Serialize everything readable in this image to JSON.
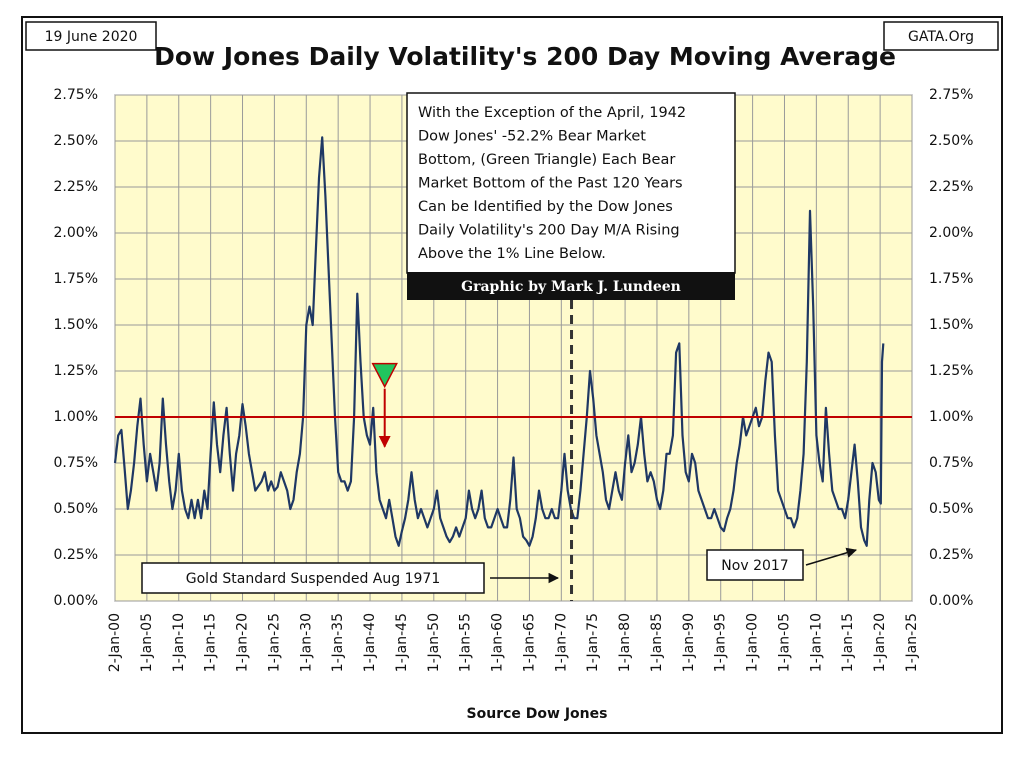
{
  "chart_data": {
    "type": "line",
    "title": "Dow Jones Daily Volatility's 200 Day Moving Average",
    "date": "19 June 2020",
    "source": "GATA.Org",
    "x_axis_label": "Source Dow Jones",
    "color": "#1f3864",
    "xlim": [
      1900,
      2025
    ],
    "ylim": [
      0,
      2.75
    ],
    "grid": true,
    "background": "#fffbcc",
    "xticks": [
      {
        "value": 1900,
        "label": "2-Jan-00"
      },
      {
        "value": 1905,
        "label": "1-Jan-05"
      },
      {
        "value": 1910,
        "label": "1-Jan-10"
      },
      {
        "value": 1915,
        "label": "1-Jan-15"
      },
      {
        "value": 1920,
        "label": "1-Jan-20"
      },
      {
        "value": 1925,
        "label": "1-Jan-25"
      },
      {
        "value": 1930,
        "label": "1-Jan-30"
      },
      {
        "value": 1935,
        "label": "1-Jan-35"
      },
      {
        "value": 1940,
        "label": "1-Jan-40"
      },
      {
        "value": 1945,
        "label": "1-Jan-45"
      },
      {
        "value": 1950,
        "label": "1-Jan-50"
      },
      {
        "value": 1955,
        "label": "1-Jan-55"
      },
      {
        "value": 1960,
        "label": "1-Jan-60"
      },
      {
        "value": 1965,
        "label": "1-Jan-65"
      },
      {
        "value": 1970,
        "label": "1-Jan-70"
      },
      {
        "value": 1975,
        "label": "1-Jan-75"
      },
      {
        "value": 1980,
        "label": "1-Jan-80"
      },
      {
        "value": 1985,
        "label": "1-Jan-85"
      },
      {
        "value": 1990,
        "label": "1-Jan-90"
      },
      {
        "value": 1995,
        "label": "1-Jan-95"
      },
      {
        "value": 2000,
        "label": "1-Jan-00"
      },
      {
        "value": 2005,
        "label": "1-Jan-05"
      },
      {
        "value": 2010,
        "label": "1-Jan-10"
      },
      {
        "value": 2015,
        "label": "1-Jan-15"
      },
      {
        "value": 2020,
        "label": "1-Jan-20"
      },
      {
        "value": 2025,
        "label": "1-Jan-25"
      }
    ],
    "yticks": [
      {
        "value": 0,
        "label": "0.00%"
      },
      {
        "value": 0.25,
        "label": "0.25%"
      },
      {
        "value": 0.5,
        "label": "0.50%"
      },
      {
        "value": 0.75,
        "label": "0.75%"
      },
      {
        "value": 1,
        "label": "1.00%"
      },
      {
        "value": 1.25,
        "label": "1.25%"
      },
      {
        "value": 1.5,
        "label": "1.50%"
      },
      {
        "value": 1.75,
        "label": "1.75%"
      },
      {
        "value": 2,
        "label": "2.00%"
      },
      {
        "value": 2.25,
        "label": "2.25%"
      },
      {
        "value": 2.5,
        "label": "2.50%"
      },
      {
        "value": 2.75,
        "label": "2.75%"
      }
    ],
    "reference_line": {
      "value": 1,
      "color": "#c00000"
    },
    "vertical_line": {
      "value": 1971.6,
      "color": "#333333"
    },
    "highlight": {
      "x": 1942.3,
      "value": 1.23,
      "color": "#22c55e"
    },
    "note": [
      "With the Exception of the April, 1942",
      "Dow Jones' -52.2% Bear Market",
      "Bottom, (Green Triangle) Each Bear",
      "Market Bottom of the Past 120 Years",
      "Can be Identified by the Dow Jones",
      "Daily Volatility's 200 Day M/A Rising",
      "Above the 1% Line Below."
    ],
    "credit": "Graphic by Mark J. Lundeen",
    "gold_note": "Gold Standard Suspended Aug 1971",
    "nov_note": "Nov 2017",
    "x": [
      1900,
      1900.5,
      1901,
      1901.5,
      1902,
      1902.5,
      1903,
      1903.5,
      1904,
      1904.5,
      1905,
      1905.5,
      1906,
      1906.5,
      1907,
      1907.5,
      1908,
      1908.5,
      1909,
      1909.5,
      1910,
      1910.5,
      1911,
      1911.5,
      1912,
      1912.5,
      1913,
      1913.5,
      1914,
      1914.5,
      1915,
      1915.5,
      1916,
      1916.5,
      1917,
      1917.5,
      1918,
      1918.5,
      1919,
      1919.5,
      1920,
      1920.5,
      1921,
      1921.5,
      1922,
      1923,
      1923.5,
      1924,
      1924.5,
      1925,
      1925.5,
      1926,
      1926.5,
      1927,
      1927.5,
      1928,
      1928.5,
      1929,
      1929.5,
      1930,
      1930.5,
      1931,
      1931.5,
      1932,
      1932.5,
      1933,
      1933.5,
      1934,
      1934.5,
      1935,
      1935.5,
      1936,
      1936.5,
      1937,
      1937.5,
      1938,
      1938.5,
      1939,
      1939.5,
      1940,
      1940.5,
      1941,
      1941.5,
      1942,
      1942.5,
      1943,
      1943.5,
      1944,
      1944.5,
      1945,
      1945.5,
      1946,
      1946.5,
      1947,
      1947.5,
      1948,
      1948.5,
      1949,
      1949.5,
      1950,
      1950.5,
      1951,
      1951.5,
      1952,
      1952.5,
      1953,
      1953.5,
      1954,
      1954.5,
      1955,
      1955.5,
      1956,
      1956.5,
      1957,
      1957.5,
      1958,
      1958.5,
      1959,
      1959.5,
      1960,
      1960.5,
      1961,
      1961.5,
      1962,
      1962.5,
      1963,
      1963.5,
      1964,
      1964.5,
      1965,
      1965.5,
      1966,
      1966.5,
      1967,
      1967.5,
      1968,
      1968.5,
      1969,
      1969.5,
      1970,
      1970.5,
      1971,
      1971.5,
      1972,
      1972.5,
      1973,
      1973.5,
      1974,
      1974.5,
      1975,
      1975.5,
      1976,
      1976.5,
      1977,
      1977.5,
      1978,
      1978.5,
      1979,
      1979.5,
      1980,
      1980.5,
      1981,
      1981.5,
      1982,
      1982.5,
      1983,
      1983.5,
      1984,
      1984.5,
      1985,
      1985.5,
      1986,
      1986.5,
      1987,
      1987.5,
      1988,
      1988.5,
      1989,
      1989.5,
      1990,
      1990.5,
      1991,
      1991.5,
      1992,
      1992.5,
      1993,
      1993.5,
      1994,
      1994.5,
      1995,
      1995.5,
      1996,
      1996.5,
      1997,
      1997.5,
      1998,
      1998.5,
      1999,
      1999.5,
      2000,
      2000.5,
      2001,
      2001.5,
      2002,
      2002.5,
      2003,
      2003.5,
      2004,
      2004.5,
      2005,
      2005.5,
      2006,
      2006.5,
      2007,
      2007.5,
      2008,
      2008.5,
      2009,
      2009.5,
      2010,
      2010.5,
      2011,
      2011.5,
      2012,
      2012.5,
      2013,
      2013.5,
      2014,
      2014.5,
      2015,
      2015.5,
      2016,
      2016.5,
      2017,
      2017.5,
      2017.9,
      2018.3,
      2018.8,
      2019.3,
      2019.8,
      2020.1,
      2020.3,
      2020.5
    ],
    "values": [
      0.75,
      0.9,
      0.93,
      0.72,
      0.5,
      0.6,
      0.75,
      0.95,
      1.1,
      0.85,
      0.65,
      0.8,
      0.7,
      0.6,
      0.75,
      1.1,
      0.85,
      0.65,
      0.5,
      0.6,
      0.8,
      0.6,
      0.5,
      0.45,
      0.55,
      0.45,
      0.55,
      0.45,
      0.6,
      0.5,
      0.8,
      1.08,
      0.85,
      0.7,
      0.9,
      1.05,
      0.8,
      0.6,
      0.8,
      0.9,
      1.07,
      0.95,
      0.8,
      0.7,
      0.6,
      0.65,
      0.7,
      0.6,
      0.65,
      0.6,
      0.62,
      0.7,
      0.65,
      0.6,
      0.5,
      0.55,
      0.7,
      0.8,
      1.0,
      1.5,
      1.6,
      1.5,
      1.9,
      2.3,
      2.52,
      2.2,
      1.8,
      1.4,
      1.0,
      0.7,
      0.65,
      0.65,
      0.6,
      0.65,
      1.0,
      1.67,
      1.3,
      1.0,
      0.9,
      0.85,
      1.05,
      0.7,
      0.55,
      0.5,
      0.45,
      0.55,
      0.45,
      0.35,
      0.3,
      0.38,
      0.45,
      0.55,
      0.7,
      0.55,
      0.45,
      0.5,
      0.45,
      0.4,
      0.45,
      0.5,
      0.6,
      0.45,
      0.4,
      0.35,
      0.32,
      0.35,
      0.4,
      0.35,
      0.4,
      0.45,
      0.6,
      0.5,
      0.45,
      0.5,
      0.6,
      0.45,
      0.4,
      0.4,
      0.45,
      0.5,
      0.45,
      0.4,
      0.4,
      0.55,
      0.78,
      0.5,
      0.45,
      0.35,
      0.33,
      0.3,
      0.35,
      0.45,
      0.6,
      0.5,
      0.45,
      0.45,
      0.5,
      0.45,
      0.45,
      0.6,
      0.8,
      0.6,
      0.5,
      0.45,
      0.45,
      0.6,
      0.8,
      1.0,
      1.25,
      1.1,
      0.9,
      0.8,
      0.7,
      0.55,
      0.5,
      0.6,
      0.7,
      0.6,
      0.55,
      0.75,
      0.9,
      0.7,
      0.75,
      0.85,
      1.0,
      0.8,
      0.65,
      0.7,
      0.65,
      0.55,
      0.5,
      0.6,
      0.8,
      0.8,
      0.9,
      1.35,
      1.4,
      0.9,
      0.7,
      0.65,
      0.8,
      0.75,
      0.6,
      0.55,
      0.5,
      0.45,
      0.45,
      0.5,
      0.45,
      0.4,
      0.38,
      0.45,
      0.5,
      0.6,
      0.75,
      0.85,
      1.0,
      0.9,
      0.95,
      1.0,
      1.05,
      0.95,
      1.0,
      1.2,
      1.35,
      1.3,
      0.9,
      0.6,
      0.55,
      0.5,
      0.45,
      0.45,
      0.4,
      0.45,
      0.6,
      0.8,
      1.3,
      2.12,
      1.6,
      0.9,
      0.75,
      0.65,
      1.05,
      0.8,
      0.6,
      0.55,
      0.5,
      0.5,
      0.45,
      0.55,
      0.7,
      0.85,
      0.65,
      0.4,
      0.33,
      0.3,
      0.55,
      0.75,
      0.7,
      0.55,
      0.53,
      1.3,
      1.4
    ]
  }
}
